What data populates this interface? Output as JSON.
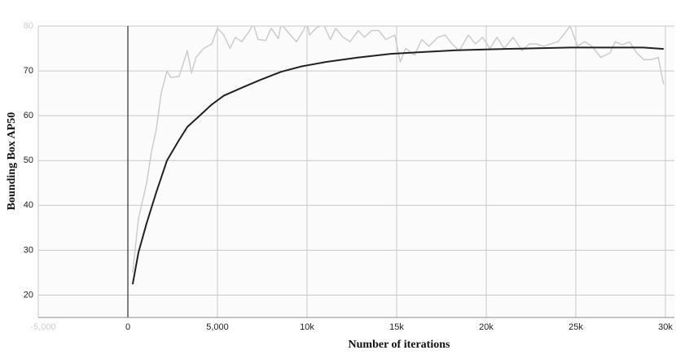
{
  "chart_data": {
    "type": "line",
    "x_label": "Number of iterations",
    "y_label": "Bounding Box AP50",
    "xlim": [
      -5000,
      30500
    ],
    "ylim": [
      15,
      80
    ],
    "xticks": [
      {
        "value": -5000,
        "label": "-5,000"
      },
      0,
      {
        "value": 5000,
        "label": "5,000"
      },
      {
        "value": 10000,
        "label": "10k"
      },
      {
        "value": 15000,
        "label": "15k"
      },
      {
        "value": 20000,
        "label": "20k"
      },
      {
        "value": 25000,
        "label": "25k"
      },
      {
        "value": 30000,
        "label": "30k"
      }
    ],
    "yticks": [
      20,
      30,
      40,
      50,
      60,
      70,
      80
    ],
    "grid": true,
    "series": [
      {
        "color": "#cccccc",
        "x": [
          270,
          590,
          1045,
          1320,
          1590,
          1860,
          2180,
          2400,
          2860,
          3320,
          3550,
          3800,
          4230,
          4680,
          5000,
          5360,
          5700,
          6000,
          6360,
          6800,
          7000,
          7270,
          7700,
          8000,
          8400,
          8550,
          8860,
          9180,
          9400,
          9800,
          10000,
          10130,
          10500,
          10900,
          11300,
          11600,
          12000,
          12400,
          12860,
          13200,
          13600,
          14000,
          14400,
          14900,
          15200,
          15500,
          16000,
          16400,
          16800,
          17300,
          17700,
          18100,
          18500,
          19000,
          19400,
          19800,
          20200,
          20600,
          21000,
          21500,
          22000,
          22400,
          22800,
          23200,
          23600,
          24000,
          24400,
          24680,
          25100,
          25500,
          25900,
          26400,
          26900,
          27200,
          27600,
          28000,
          28400,
          28800,
          29200,
          29600,
          29900
        ],
        "values": [
          25,
          37,
          45,
          52,
          57,
          65,
          70,
          68.5,
          68.8,
          74.5,
          69.5,
          73,
          75,
          76,
          79.5,
          78,
          75,
          77.5,
          76.5,
          79,
          80.5,
          77,
          76.8,
          79.5,
          77.2,
          80.5,
          79,
          77.5,
          76.5,
          79,
          81,
          78,
          79.5,
          80.5,
          77,
          79.5,
          77.5,
          76.5,
          79,
          77.5,
          79,
          79,
          77,
          78,
          72,
          75,
          73.5,
          77,
          75.5,
          77.5,
          78,
          76,
          74.5,
          78,
          76,
          77.5,
          75,
          77.5,
          75,
          77.5,
          74.5,
          76,
          76,
          75.5,
          76,
          76.5,
          78.5,
          80,
          75.5,
          76.5,
          75.5,
          73,
          74,
          76.5,
          75.8,
          76.5,
          74,
          72.5,
          72.5,
          73,
          67
        ]
      },
      {
        "color": "#222222",
        "x": [
          270,
          590,
          1045,
          1590,
          2180,
          2770,
          3320,
          4000,
          4680,
          5360,
          6500,
          7400,
          8550,
          9680,
          11045,
          12860,
          14680,
          16500,
          18320,
          20140,
          22400,
          24680,
          26950,
          28770,
          29900
        ],
        "values": [
          22.4,
          29.5,
          36,
          43,
          50,
          54,
          57.5,
          60,
          62.5,
          64.5,
          66.5,
          68,
          69.8,
          71,
          72,
          73,
          73.8,
          74.2,
          74.6,
          74.8,
          75,
          75.2,
          75.2,
          75.2,
          74.9
        ]
      }
    ]
  }
}
